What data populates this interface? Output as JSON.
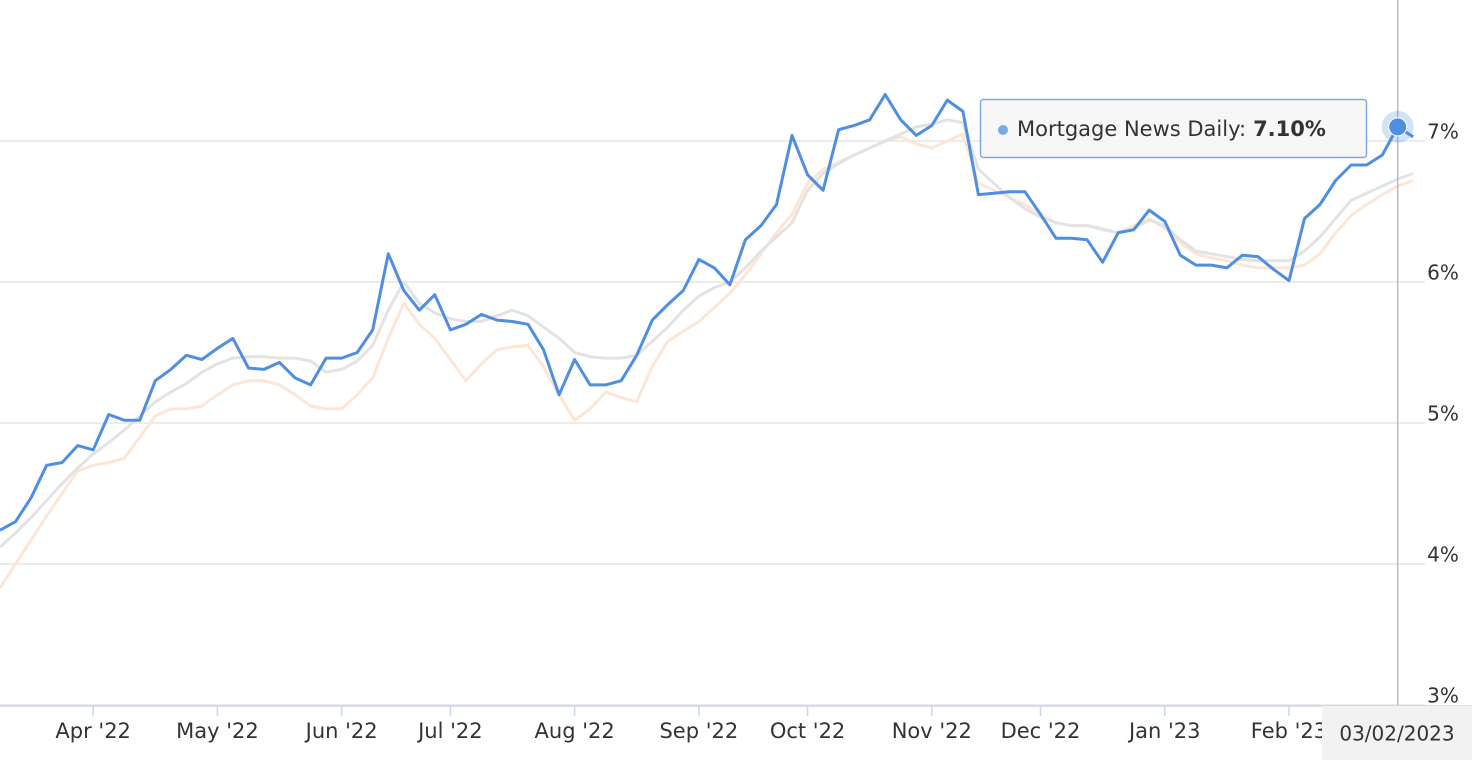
{
  "chart_data": {
    "type": "line",
    "categories": [
      null,
      null,
      null,
      null,
      null,
      null,
      "Apr '22",
      null,
      null,
      null,
      null,
      null,
      null,
      null,
      "May '22",
      null,
      null,
      null,
      null,
      null,
      null,
      null,
      "Jun '22",
      null,
      null,
      null,
      null,
      null,
      null,
      "Jul '22",
      null,
      null,
      null,
      null,
      null,
      null,
      null,
      "Aug '22",
      null,
      null,
      null,
      null,
      null,
      null,
      null,
      "Sep '22",
      null,
      null,
      null,
      null,
      null,
      null,
      "Oct '22",
      null,
      null,
      null,
      null,
      null,
      null,
      null,
      "Nov '22",
      null,
      null,
      null,
      null,
      null,
      null,
      "Dec '22",
      null,
      null,
      null,
      null,
      null,
      null,
      null,
      "Jan '23",
      null,
      null,
      null,
      null,
      null,
      null,
      null,
      "Feb '23",
      null,
      null,
      null,
      null,
      null,
      null,
      null,
      null
    ],
    "series": [
      {
        "color": "#fde6d6",
        "values": [
          3.83,
          4.0,
          4.17,
          4.34,
          4.5,
          4.66,
          4.7,
          4.72,
          4.75,
          4.9,
          5.05,
          5.1,
          5.1,
          5.12,
          5.2,
          5.27,
          5.3,
          5.3,
          5.27,
          5.2,
          5.12,
          5.1,
          5.1,
          5.2,
          5.32,
          5.6,
          5.85,
          5.7,
          5.6,
          5.45,
          5.3,
          5.42,
          5.52,
          5.54,
          5.55,
          5.4,
          5.2,
          5.02,
          5.1,
          5.22,
          5.18,
          5.15,
          5.4,
          5.58,
          5.65,
          5.72,
          5.82,
          5.92,
          6.05,
          6.2,
          6.35,
          6.48,
          6.7,
          6.8,
          6.85,
          6.9,
          6.95,
          7.0,
          7.03,
          6.98,
          6.95,
          7.0,
          7.05,
          6.7,
          6.65,
          6.6,
          6.55,
          6.48,
          6.42,
          6.4,
          6.4,
          6.38,
          6.35,
          6.4,
          6.45,
          6.38,
          6.28,
          6.2,
          6.17,
          6.15,
          6.12,
          6.1,
          6.1,
          6.1,
          6.12,
          6.2,
          6.35,
          6.47,
          6.55,
          6.62,
          6.68,
          6.72
        ]
      },
      {
        "color": "#e3e3e3",
        "values": [
          4.12,
          4.22,
          4.33,
          4.45,
          4.57,
          4.68,
          4.78,
          4.86,
          4.95,
          5.05,
          5.15,
          5.22,
          5.28,
          5.36,
          5.42,
          5.46,
          5.47,
          5.47,
          5.46,
          5.46,
          5.44,
          5.36,
          5.38,
          5.44,
          5.55,
          5.8,
          6.0,
          5.85,
          5.78,
          5.74,
          5.72,
          5.72,
          5.76,
          5.8,
          5.76,
          5.68,
          5.6,
          5.5,
          5.47,
          5.46,
          5.46,
          5.48,
          5.58,
          5.68,
          5.8,
          5.9,
          5.96,
          6.0,
          6.1,
          6.22,
          6.32,
          6.42,
          6.65,
          6.77,
          6.84,
          6.9,
          6.95,
          7.0,
          7.05,
          7.1,
          7.12,
          7.15,
          7.13,
          6.8,
          6.7,
          6.6,
          6.52,
          6.46,
          6.42,
          6.4,
          6.4,
          6.37,
          6.35,
          6.38,
          6.44,
          6.4,
          6.3,
          6.22,
          6.2,
          6.18,
          6.16,
          6.15,
          6.15,
          6.15,
          6.22,
          6.32,
          6.45,
          6.58,
          6.63,
          6.68,
          6.73,
          6.77
        ]
      },
      {
        "name": "Mortgage News Daily",
        "color": "#4f8ee0",
        "values": [
          4.24,
          4.3,
          4.47,
          4.7,
          4.72,
          4.84,
          4.81,
          5.06,
          5.02,
          5.02,
          5.3,
          5.38,
          5.48,
          5.45,
          5.53,
          5.6,
          5.39,
          5.38,
          5.43,
          5.32,
          5.27,
          5.46,
          5.46,
          5.5,
          5.66,
          6.2,
          5.94,
          5.8,
          5.91,
          5.66,
          5.7,
          5.77,
          5.73,
          5.72,
          5.7,
          5.52,
          5.2,
          5.45,
          5.27,
          5.27,
          5.3,
          5.48,
          5.73,
          5.84,
          5.94,
          6.16,
          6.1,
          5.98,
          6.3,
          6.4,
          6.55,
          7.04,
          6.76,
          6.65,
          7.08,
          7.11,
          7.15,
          7.33,
          7.15,
          7.04,
          7.11,
          7.29,
          7.21,
          6.62,
          6.63,
          6.64,
          6.64,
          6.48,
          6.31,
          6.31,
          6.3,
          6.14,
          6.35,
          6.37,
          6.51,
          6.43,
          6.19,
          6.12,
          6.12,
          6.1,
          6.19,
          6.18,
          6.09,
          6.01,
          6.45,
          6.55,
          6.72,
          6.83,
          6.83,
          6.9,
          7.1,
          7.03
        ]
      }
    ],
    "ylim": [
      3,
      8
    ],
    "yticks": [
      {
        "value": 3,
        "label": "3%"
      },
      {
        "value": 4,
        "label": "4%"
      },
      {
        "value": 5,
        "label": "5%"
      },
      {
        "value": 6,
        "label": "6%"
      },
      {
        "value": 7,
        "label": "7%"
      }
    ],
    "grid": true,
    "tooltip": {
      "text": "Mortgage News Daily:",
      "value": "7.10%"
    },
    "crosshair_label": "03/02/2023"
  }
}
